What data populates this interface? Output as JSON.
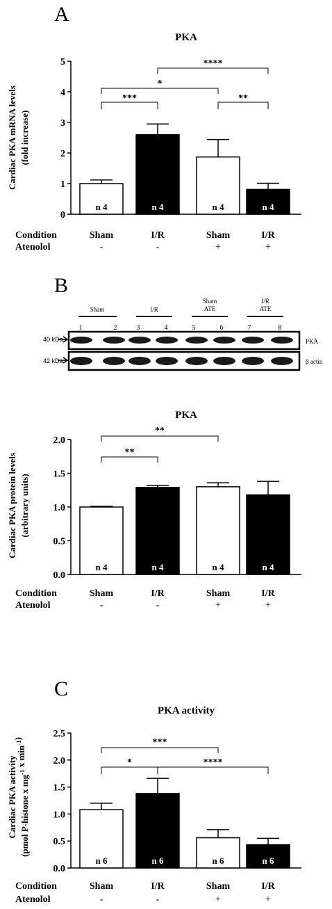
{
  "figure": {
    "panel_letters": [
      "A",
      "B",
      "C"
    ]
  },
  "conditions": {
    "row_labels": {
      "condition": "Condition",
      "atenolol": "Atenolol"
    },
    "condition_values": [
      "Sham",
      "I/R",
      "Sham",
      "I/R"
    ],
    "atenolol_values": [
      "-",
      "-",
      "+",
      "+"
    ]
  },
  "blot": {
    "group_labels": [
      [
        "Sham"
      ],
      [
        "I/R"
      ],
      [
        "Sham",
        "ATE"
      ],
      [
        "I/R",
        "ATE"
      ]
    ],
    "lane_numbers": [
      "1",
      "2",
      "3",
      "4",
      "5",
      "6",
      "7",
      "8"
    ],
    "rows": [
      {
        "kda": "40 kDa",
        "protein": "PKA"
      },
      {
        "kda": "42 kDa",
        "protein": "β actin"
      }
    ]
  },
  "colors": {
    "sham": "#ffffff",
    "ir": "#000000",
    "axis": "#000000"
  },
  "chart_data": [
    {
      "type": "bar",
      "title": "PKA",
      "ylabel_lines": [
        "Cardiac PKA mRNA levels",
        "(fold increase)"
      ],
      "categories": [
        "Sham",
        "I/R",
        "Sham",
        "I/R"
      ],
      "values": [
        1.0,
        2.6,
        1.87,
        0.81
      ],
      "errors": [
        0.12,
        0.35,
        0.57,
        0.2
      ],
      "n_labels": [
        "n 4",
        "n 4",
        "n 4",
        "n 4"
      ],
      "ylim": [
        0,
        5
      ],
      "yticks": [
        "0",
        "1",
        "2",
        "3",
        "4",
        "5"
      ],
      "significance": [
        {
          "from": 0,
          "to": 1,
          "label": "***"
        },
        {
          "from": 2,
          "to": 3,
          "label": "**"
        },
        {
          "from": 0,
          "to": 2,
          "label": "*"
        },
        {
          "from": 1,
          "to": 3,
          "label": "****"
        }
      ]
    },
    {
      "type": "bar",
      "title": "PKA",
      "ylabel_lines": [
        "Cardiac PKA protein levels",
        "(arbitrary units)"
      ],
      "categories": [
        "Sham",
        "I/R",
        "Sham",
        "I/R"
      ],
      "values": [
        1.0,
        1.29,
        1.3,
        1.18
      ],
      "errors": [
        0.01,
        0.03,
        0.06,
        0.2
      ],
      "n_labels": [
        "n 4",
        "n 4",
        "n 4",
        "n 4"
      ],
      "ylim": [
        0,
        2
      ],
      "yticks": [
        "0.0",
        "0.5",
        "1.0",
        "1.5",
        "2.0"
      ],
      "significance": [
        {
          "from": 0,
          "to": 1,
          "label": "**"
        },
        {
          "from": 0,
          "to": 2,
          "label": "**"
        }
      ]
    },
    {
      "type": "bar",
      "title": "PKA activity",
      "ylabel_lines": [
        "Cardiac PKA activity",
        "(pmol P-histone x mg-1 x min-1)"
      ],
      "categories": [
        "Sham",
        "I/R",
        "Sham",
        "I/R"
      ],
      "values": [
        1.08,
        1.38,
        0.56,
        0.43
      ],
      "errors": [
        0.12,
        0.28,
        0.15,
        0.12
      ],
      "n_labels": [
        "n 6",
        "n 6",
        "n 6",
        "n 6"
      ],
      "ylim": [
        0,
        2.5
      ],
      "yticks": [
        "0.0",
        "0.5",
        "1.0",
        "1.5",
        "2.0",
        "2.5"
      ],
      "significance": [
        {
          "from": 0,
          "to": 1,
          "label": "*"
        },
        {
          "from": 1,
          "to": 3,
          "label": "****"
        },
        {
          "from": 0,
          "to": 2,
          "label": "***"
        }
      ]
    }
  ]
}
